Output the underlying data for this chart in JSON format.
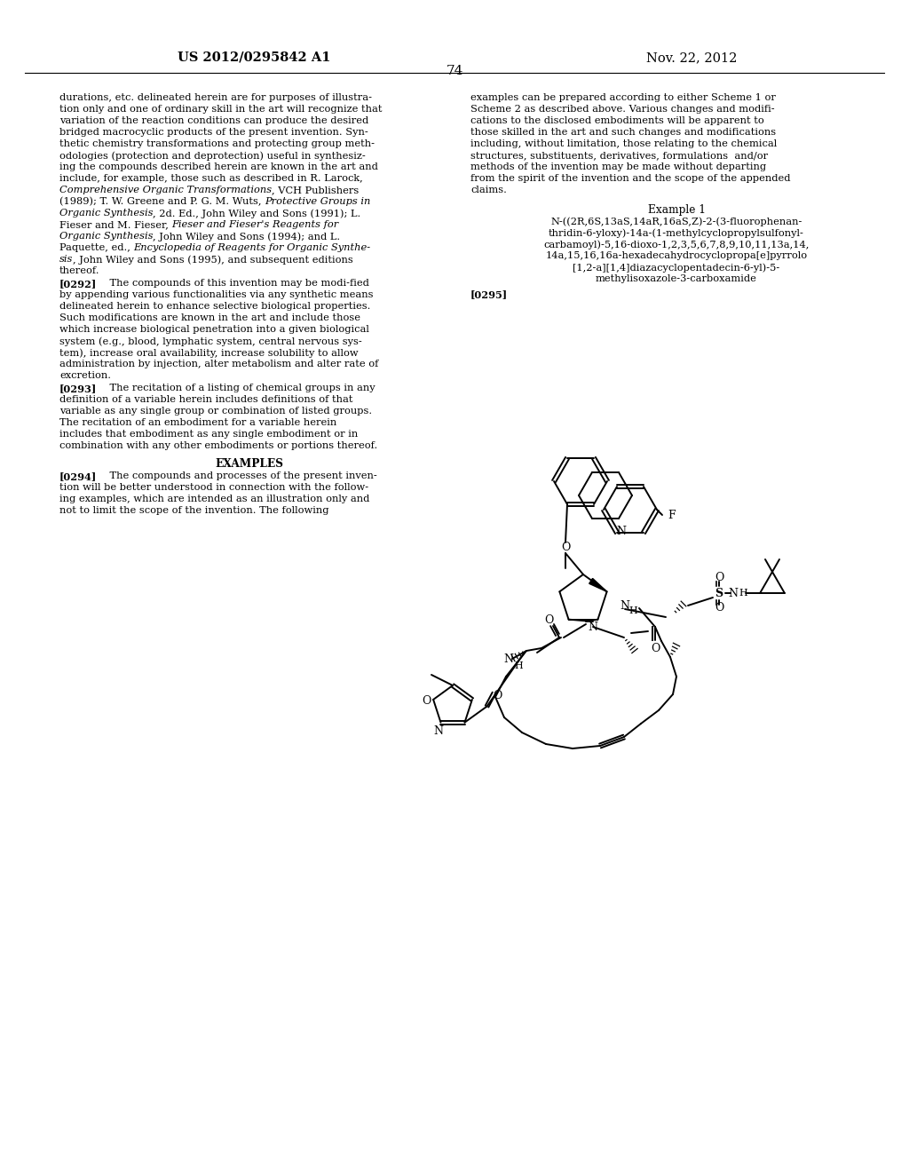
{
  "patent_number": "US 2012/0295842 A1",
  "date": "Nov. 22, 2012",
  "page_number": "74",
  "background_color": "#ffffff",
  "left_col_lines": [
    [
      [
        "durations, etc. delineated herein are for purposes of illustra-",
        "normal"
      ]
    ],
    [
      [
        "tion only and one of ordinary skill in the art will recognize that",
        "normal"
      ]
    ],
    [
      [
        "variation of the reaction conditions can produce the desired",
        "normal"
      ]
    ],
    [
      [
        "bridged macrocyclic products of the present invention. Syn-",
        "normal"
      ]
    ],
    [
      [
        "thetic chemistry transformations and protecting group meth-",
        "normal"
      ]
    ],
    [
      [
        "odologies (protection and deprotection) useful in synthesiz-",
        "normal"
      ]
    ],
    [
      [
        "ing the compounds described herein are known in the art and",
        "normal"
      ]
    ],
    [
      [
        "include, for example, those such as described in R. Larock,",
        "normal"
      ]
    ],
    [
      [
        "Comprehensive Organic Transformations",
        "italic"
      ],
      [
        ", VCH Publishers",
        "normal"
      ]
    ],
    [
      [
        "(1989); T. W. Greene and P. G. M. Wuts, ",
        "normal"
      ],
      [
        "Protective Groups in",
        "italic"
      ]
    ],
    [
      [
        "Organic Synthesis",
        "italic"
      ],
      [
        ", 2d. Ed., John Wiley and Sons (1991); L.",
        "normal"
      ]
    ],
    [
      [
        "Fieser and M. Fieser, ",
        "normal"
      ],
      [
        "Fieser and Fieser's Reagents for",
        "italic"
      ]
    ],
    [
      [
        "Organic Synthesis",
        "italic"
      ],
      [
        ", John Wiley and Sons (1994); and L.",
        "normal"
      ]
    ],
    [
      [
        "Paquette, ed., ",
        "normal"
      ],
      [
        "Encyclopedia of Reagents for Organic Synthe-",
        "italic"
      ]
    ],
    [
      [
        "sis",
        "italic"
      ],
      [
        ", John Wiley and Sons (1995), and subsequent editions",
        "normal"
      ]
    ],
    [
      [
        "thereof.",
        "normal"
      ]
    ]
  ],
  "p0292_lines": [
    [
      [
        "[0292]",
        "bold"
      ],
      [
        "    The compounds of this invention may be modi­fied",
        "normal"
      ]
    ],
    [
      [
        "by appending various functionalities via any synthetic means",
        "normal"
      ]
    ],
    [
      [
        "delineated herein to enhance selective biological properties.",
        "normal"
      ]
    ],
    [
      [
        "Such modifications are known in the art and include those",
        "normal"
      ]
    ],
    [
      [
        "which increase biological penetration into a given biological",
        "normal"
      ]
    ],
    [
      [
        "system (e.g., blood, lymphatic system, central nervous sys-",
        "normal"
      ]
    ],
    [
      [
        "tem), increase oral availability, increase solubility to allow",
        "normal"
      ]
    ],
    [
      [
        "administration by injection, alter metabolism and alter rate of",
        "normal"
      ]
    ],
    [
      [
        "excretion.",
        "normal"
      ]
    ]
  ],
  "p0293_lines": [
    [
      [
        "[0293]",
        "bold"
      ],
      [
        "    The recitation of a listing of chemical groups in any",
        "normal"
      ]
    ],
    [
      [
        "definition of a variable herein includes definitions of that",
        "normal"
      ]
    ],
    [
      [
        "variable as any single group or combination of listed groups.",
        "normal"
      ]
    ],
    [
      [
        "The recitation of an embodiment for a variable herein",
        "normal"
      ]
    ],
    [
      [
        "includes that embodiment as any single embodiment or in",
        "normal"
      ]
    ],
    [
      [
        "combination with any other embodiments or portions thereof.",
        "normal"
      ]
    ]
  ],
  "p0294_lines": [
    [
      [
        "[0294]",
        "bold"
      ],
      [
        "    The compounds and processes of the present inven-",
        "normal"
      ]
    ],
    [
      [
        "tion will be better understood in connection with the follow-",
        "normal"
      ]
    ],
    [
      [
        "ing examples, which are intended as an illustration only and",
        "normal"
      ]
    ],
    [
      [
        "not to limit the scope of the invention. The following",
        "normal"
      ]
    ]
  ],
  "right_col_lines": [
    [
      [
        "examples can be prepared according to either Scheme 1 or",
        "normal"
      ]
    ],
    [
      [
        "Scheme 2 as described above. Various changes and modifi-",
        "normal"
      ]
    ],
    [
      [
        "cations to the disclosed embodiments will be apparent to",
        "normal"
      ]
    ],
    [
      [
        "those skilled in the art and such changes and modifications",
        "normal"
      ]
    ],
    [
      [
        "including, without limitation, those relating to the chemical",
        "normal"
      ]
    ],
    [
      [
        "structures, substituents, derivatives, formulations  and/or",
        "normal"
      ]
    ],
    [
      [
        "methods of the invention may be made without departing",
        "normal"
      ]
    ],
    [
      [
        "from the spirit of the invention and the scope of the appended",
        "normal"
      ]
    ],
    [
      [
        "claims.",
        "normal"
      ]
    ]
  ],
  "ex1_name_lines": [
    "N-((2R,6S,13aS,14aR,16aS,Z)-2-(3-fluorophenan-",
    "thridin-6-yloxy)-14a-(1-methylcyclopropylsulfonyl-",
    "carbamoyl)-5,16-dioxo-1,2,3,5,6,7,8,9,10,11,13a,14,",
    "14a,15,16,16a-hexadecahydrocyclopropa[e]pyrrolo",
    "[1,2-a][1,4]diazacyclopentadecin-6-yl)-5-",
    "methylisoxazole-3-carboxamide"
  ]
}
